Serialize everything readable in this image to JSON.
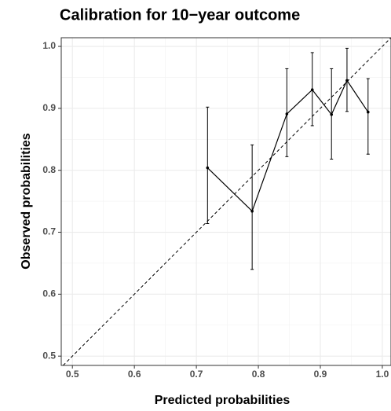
{
  "chart_data": {
    "type": "line",
    "title": "Calibration for 10−year outcome",
    "x_label": "Predicted probabilities",
    "y_label": "Observed probabilities",
    "series": [
      {
        "color": "#000000",
        "x": [
          0.718,
          0.79,
          0.846,
          0.887,
          0.918,
          0.943,
          0.977
        ],
        "values": [
          0.804,
          0.734,
          0.891,
          0.93,
          0.89,
          0.945,
          0.894
        ],
        "lower": [
          0.714,
          0.64,
          0.822,
          0.872,
          0.818,
          0.895,
          0.826
        ],
        "upper": [
          0.902,
          0.841,
          0.964,
          0.99,
          0.964,
          0.997,
          0.948
        ]
      }
    ],
    "xlim": [
      0.482,
      1.014
    ],
    "ylim": [
      0.485,
      1.014
    ],
    "xticks": [
      0.5,
      0.6,
      0.7,
      0.8,
      0.9,
      {
        "value": 1,
        "label": "1.0"
      }
    ],
    "yticks": [
      0.5,
      0.6,
      0.7,
      0.8,
      0.9,
      {
        "value": 1,
        "label": "1.0"
      }
    ],
    "grid": true,
    "reference_line": "dashed"
  }
}
